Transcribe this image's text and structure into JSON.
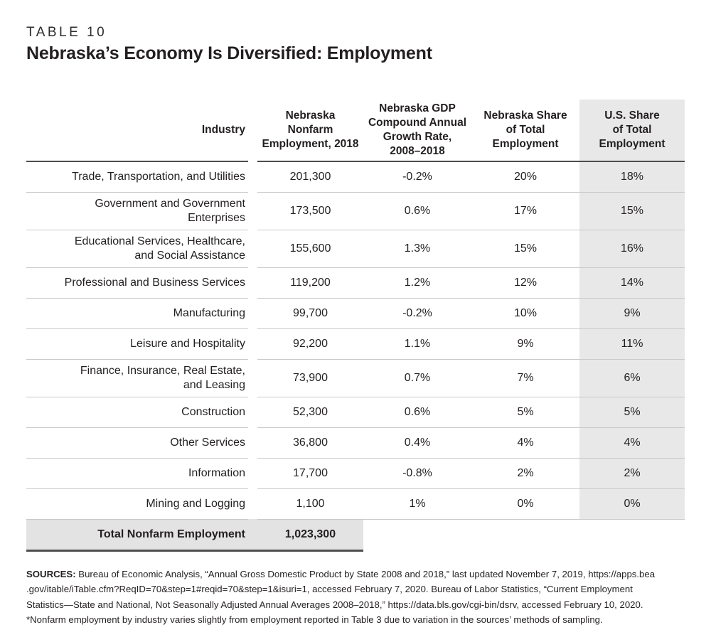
{
  "page": {
    "eyebrow": "TABLE 10",
    "title": "Nebraska’s Economy Is Diversified: Employment"
  },
  "table": {
    "columns": [
      {
        "id": "industry",
        "label": "Industry"
      },
      {
        "id": "ne_nonfarm_employment_2018",
        "label": "Nebraska\nNonfarm\nEmployment, 2018"
      },
      {
        "id": "ne_gdp_cagr_2008_2018",
        "label": "Nebraska GDP\nCompound Annual\nGrowth Rate,\n2008–2018"
      },
      {
        "id": "ne_share_total_employment",
        "label": "Nebraska Share\nof Total\nEmployment"
      },
      {
        "id": "us_share_total_employment",
        "label": "U.S. Share\nof Total\nEmployment"
      }
    ],
    "rows": [
      {
        "industry": "Trade, Transportation, and Utilities",
        "employment_2018": "201,300",
        "gdp_cagr": "-0.2%",
        "ne_share": "20%",
        "us_share": "18%"
      },
      {
        "industry": "Government and Government\nEnterprises",
        "employment_2018": "173,500",
        "gdp_cagr": "0.6%",
        "ne_share": "17%",
        "us_share": "15%"
      },
      {
        "industry": "Educational Services, Healthcare,\nand Social Assistance",
        "employment_2018": "155,600",
        "gdp_cagr": "1.3%",
        "ne_share": "15%",
        "us_share": "16%"
      },
      {
        "industry": "Professional and Business Services",
        "employment_2018": "119,200",
        "gdp_cagr": "1.2%",
        "ne_share": "12%",
        "us_share": "14%"
      },
      {
        "industry": "Manufacturing",
        "employment_2018": "99,700",
        "gdp_cagr": "-0.2%",
        "ne_share": "10%",
        "us_share": "9%"
      },
      {
        "industry": "Leisure and Hospitality",
        "employment_2018": "92,200",
        "gdp_cagr": "1.1%",
        "ne_share": "9%",
        "us_share": "11%"
      },
      {
        "industry": "Finance, Insurance, Real Estate,\nand Leasing",
        "employment_2018": "73,900",
        "gdp_cagr": "0.7%",
        "ne_share": "7%",
        "us_share": "6%"
      },
      {
        "industry": "Construction",
        "employment_2018": "52,300",
        "gdp_cagr": "0.6%",
        "ne_share": "5%",
        "us_share": "5%"
      },
      {
        "industry": "Other Services",
        "employment_2018": "36,800",
        "gdp_cagr": "0.4%",
        "ne_share": "4%",
        "us_share": "4%"
      },
      {
        "industry": "Information",
        "employment_2018": "17,700",
        "gdp_cagr": "-0.8%",
        "ne_share": "2%",
        "us_share": "2%"
      },
      {
        "industry": "Mining and Logging",
        "employment_2018": "1,100",
        "gdp_cagr": "1%",
        "ne_share": "0%",
        "us_share": "0%"
      }
    ],
    "total": {
      "label": "Total Nonfarm Employment",
      "value": "1,023,300"
    }
  },
  "sources": {
    "label": "SOURCES:",
    "lines": [
      " Bureau of Economic Analysis, “Annual Gross Domestic Product by State 2008 and 2018,” last updated November 7, 2019, https://apps.bea",
      ".gov/itable/iTable.cfm?ReqID=70&step=1#reqid=70&step=1&isuri=1, accessed February 7, 2020. Bureau of Labor Statistics, “Current Employment",
      "Statistics—State and National, Not Seasonally Adjusted Annual Averages 2008–2018,” https://data.bls.gov/cgi-bin/dsrv, accessed February 10, 2020.",
      "*Nonfarm employment by industry varies slightly from employment reported in Table 3 due to variation in the sources’ methods of sampling."
    ]
  },
  "colors": {
    "highlight_column_bg": "#e8e8e8",
    "total_row_bg": "#e3e3e3",
    "row_divider": "#c9c9c9",
    "strong_border": "#4d4d4d",
    "text": "#231f20"
  }
}
